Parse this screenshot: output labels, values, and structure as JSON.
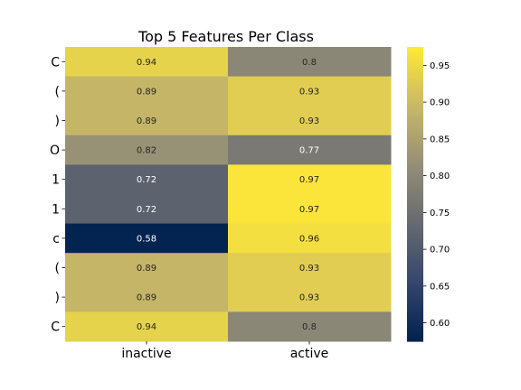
{
  "chart_data": {
    "type": "heatmap",
    "title": "Top 5 Features Per Class",
    "xlabel": "",
    "ylabel": "",
    "columns": [
      "inactive",
      "active"
    ],
    "rows": [
      "C",
      "(",
      ")",
      "O",
      "1",
      "1",
      "c",
      "(",
      ")",
      "C"
    ],
    "values": [
      [
        0.94,
        0.8
      ],
      [
        0.89,
        0.93
      ],
      [
        0.89,
        0.93
      ],
      [
        0.82,
        0.77
      ],
      [
        0.72,
        0.97
      ],
      [
        0.72,
        0.97
      ],
      [
        0.58,
        0.96
      ],
      [
        0.89,
        0.93
      ],
      [
        0.89,
        0.93
      ],
      [
        0.94,
        0.8
      ]
    ],
    "annotation_labels": [
      [
        "0.94",
        "0.8"
      ],
      [
        "0.89",
        "0.93"
      ],
      [
        "0.89",
        "0.93"
      ],
      [
        "0.82",
        "0.77"
      ],
      [
        "0.72",
        "0.97"
      ],
      [
        "0.72",
        "0.97"
      ],
      [
        "0.58",
        "0.96"
      ],
      [
        "0.89",
        "0.93"
      ],
      [
        "0.89",
        "0.93"
      ],
      [
        "0.94",
        "0.8"
      ]
    ],
    "colorbar": {
      "colormap": "cividis",
      "range": [
        0.575,
        0.975
      ],
      "ticks": [
        0.6,
        0.65,
        0.7,
        0.75,
        0.8,
        0.85,
        0.9,
        0.95
      ],
      "tick_labels": [
        "0.60",
        "0.65",
        "0.70",
        "0.75",
        "0.80",
        "0.85",
        "0.90",
        "0.95"
      ]
    },
    "grid": false,
    "legend": "colorbar-right"
  },
  "colors": {
    "colormap_stops": [
      "#00224e",
      "#35456c",
      "#666970",
      "#948e77",
      "#c8b866",
      "#fee838"
    ],
    "text_light": "#ffffff",
    "text_dark": "#262626",
    "axis": "#000000"
  }
}
